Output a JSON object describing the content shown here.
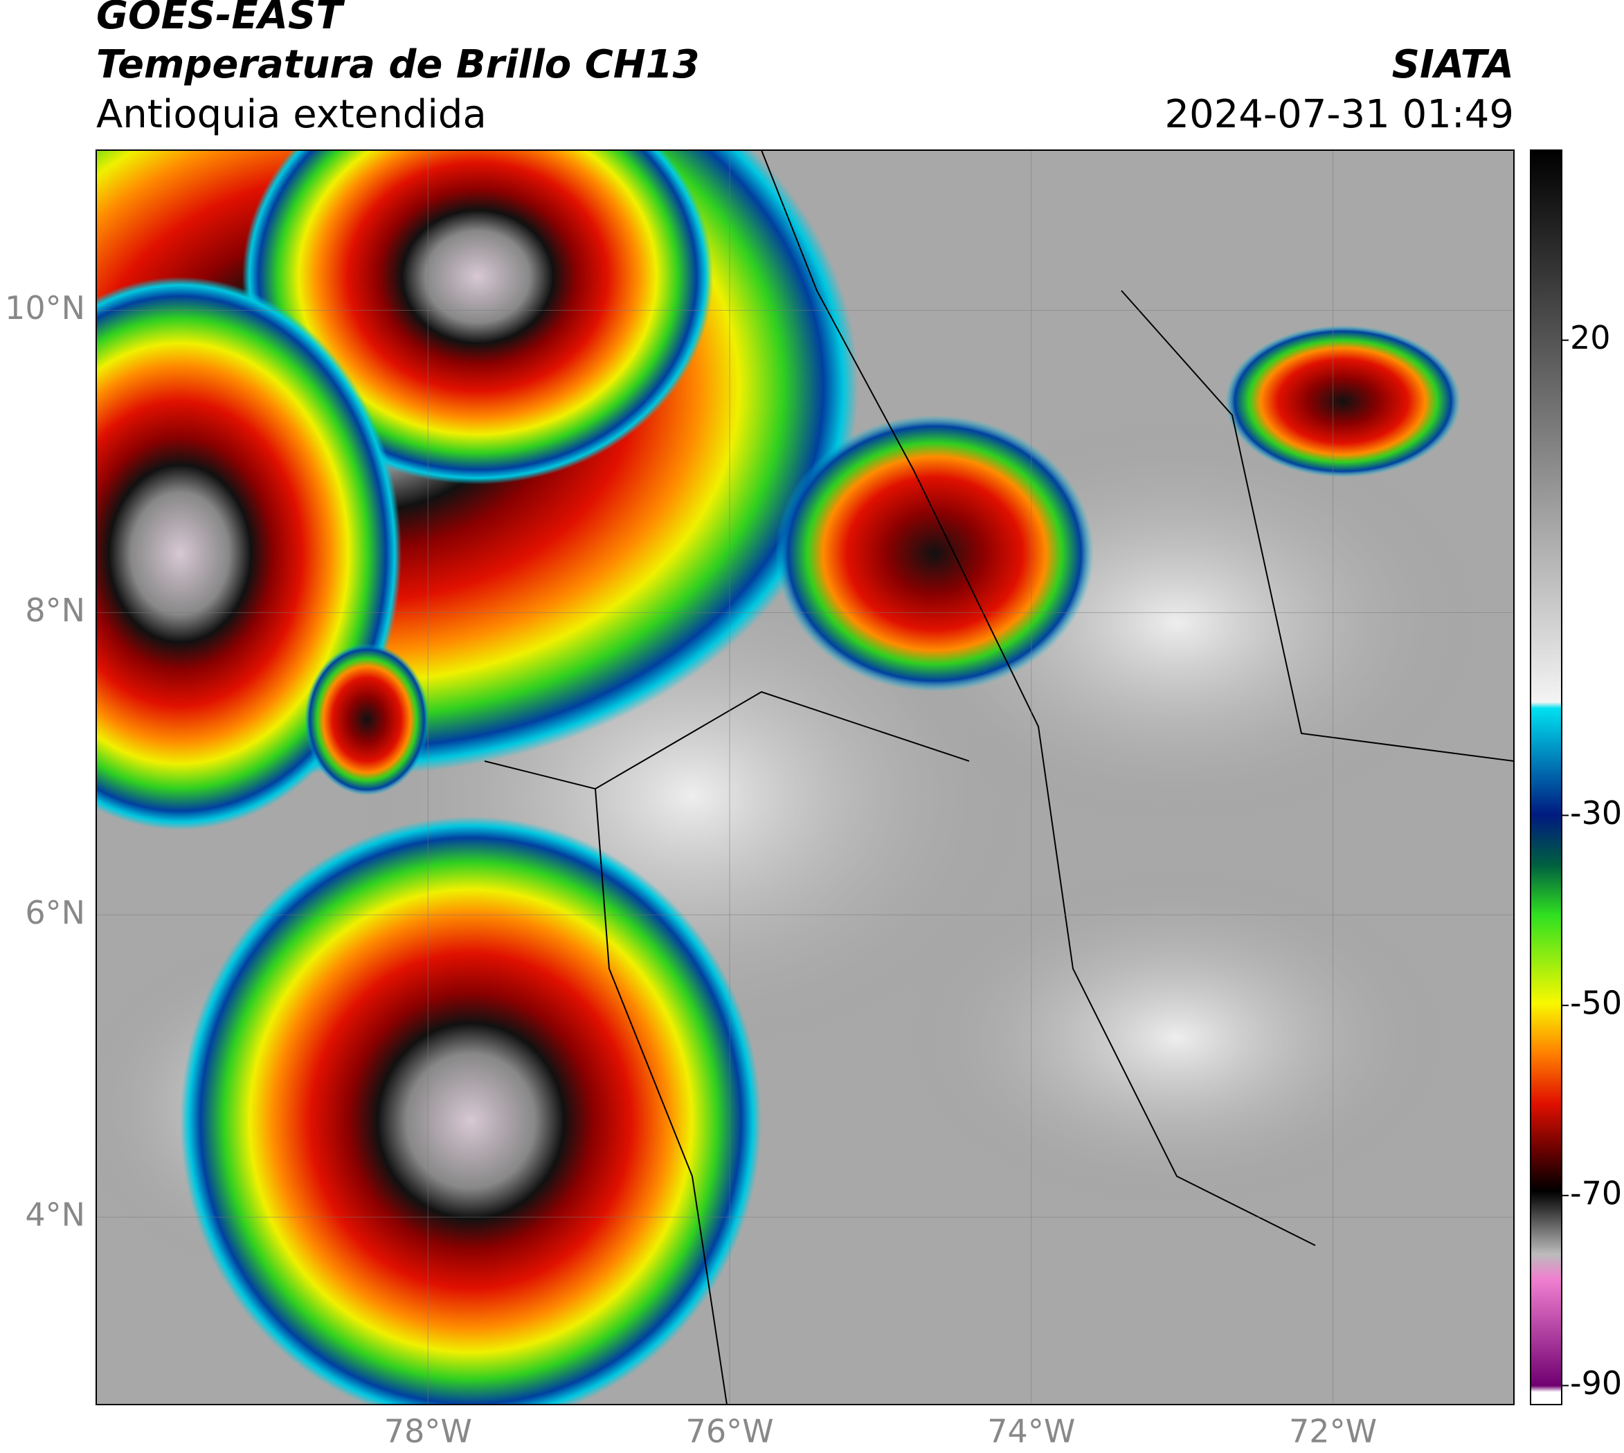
{
  "header": {
    "title": "GOES-EAST",
    "subtitle": "Temperatura de Brillo CH13",
    "region": "Antioquia extendida",
    "source": "SIATA",
    "datetime": "2024-07-31 01:49"
  },
  "map": {
    "xlim": [
      -80.2,
      -70.8
    ],
    "ylim": [
      2.76,
      11.06
    ],
    "xticks": [
      {
        "value": -78,
        "label": "78°W"
      },
      {
        "value": -76,
        "label": "76°W"
      },
      {
        "value": -74,
        "label": "74°W"
      },
      {
        "value": -72,
        "label": "72°W"
      }
    ],
    "yticks": [
      {
        "value": 10,
        "label": "10°N"
      },
      {
        "value": 8,
        "label": "8°N"
      },
      {
        "value": 6,
        "label": "6°N"
      },
      {
        "value": 4,
        "label": "4°N"
      }
    ],
    "grid": true
  },
  "colorbar": {
    "lim": [
      -92,
      40
    ],
    "ticks": [
      20,
      -30,
      -50,
      -70,
      -90
    ]
  }
}
